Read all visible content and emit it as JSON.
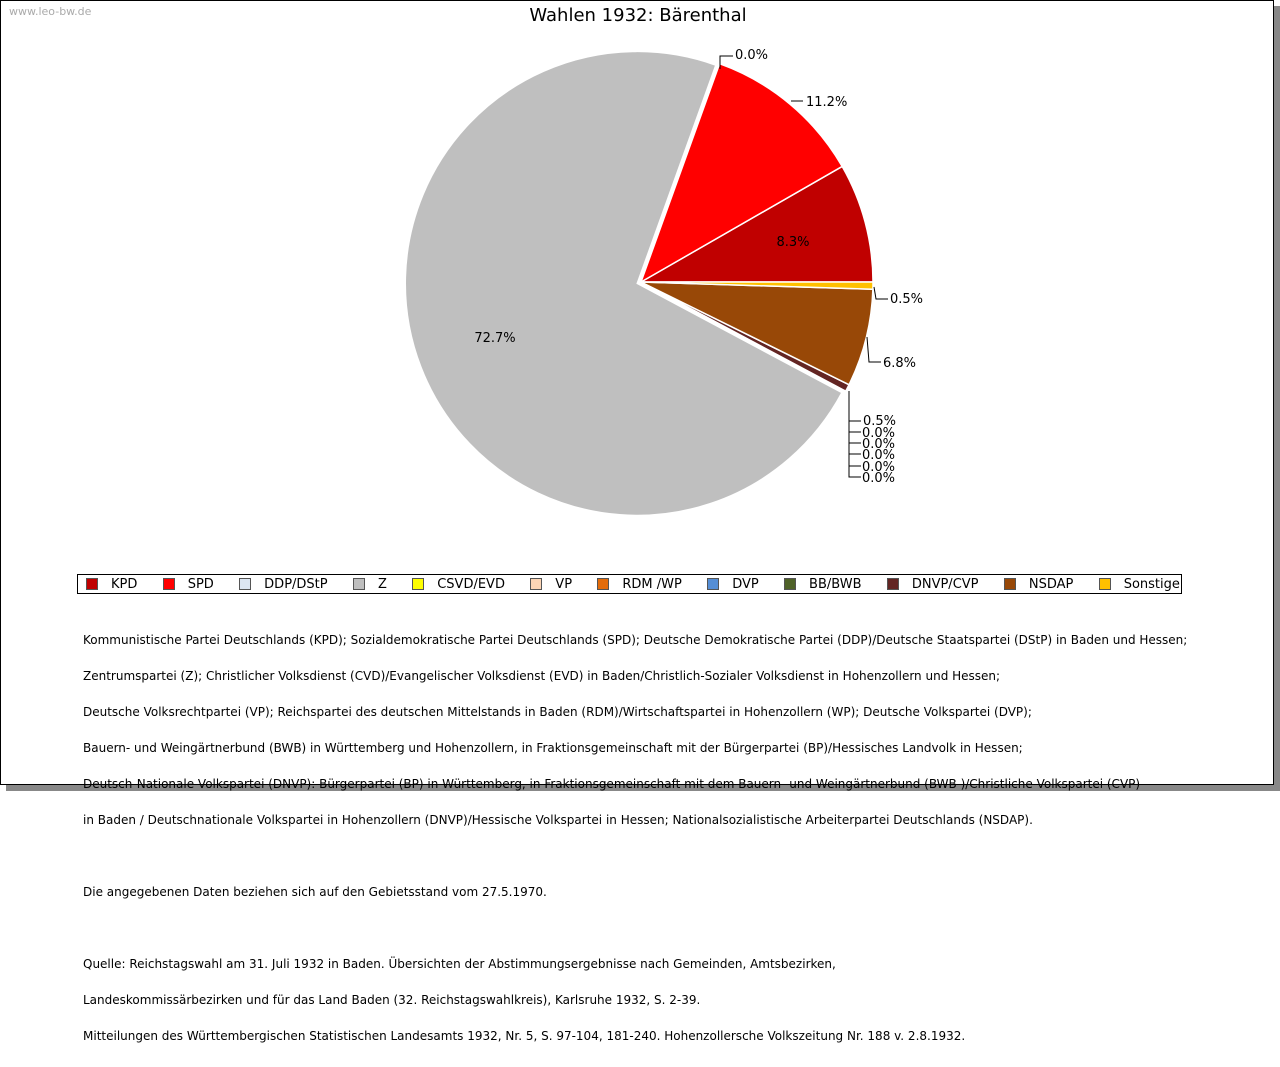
{
  "watermark": "www.leo-bw.de",
  "chart_data": {
    "type": "pie",
    "title": "Wahlen 1932: Bärenthal",
    "categories": [
      "KPD",
      "SPD",
      "DDP/DStP",
      "Z",
      "CSVD/EVD",
      "VP",
      "RDM /WP",
      "DVP",
      "BB/BWB",
      "DNVP/CVP",
      "NSDAP",
      "Sonstige"
    ],
    "values": [
      8.3,
      11.2,
      0.0,
      72.7,
      0.0,
      0.0,
      0.0,
      0.0,
      0.0,
      0.5,
      6.8,
      0.5
    ],
    "labels": [
      "8.3%",
      "11.2%",
      "0.0%",
      "72.7%",
      "0.0%",
      "0.0%",
      "0.0%",
      "0.0%",
      "0.0%",
      "0.5%",
      "6.8%",
      "0.5%"
    ],
    "colors": [
      "#c00000",
      "#ff0000",
      "#dce6f2",
      "#bfbfbf",
      "#ffff00",
      "#fcd5b5",
      "#e46c0a",
      "#558ed5",
      "#4f6228",
      "#632523",
      "#984807",
      "#ffc000"
    ],
    "exploded": "Z",
    "legend_position": "bottom"
  },
  "notes": {
    "lines": [
      "Kommunistische Partei Deutschlands (KPD); Sozialdemokratische Partei Deutschlands (SPD); Deutsche Demokratische Partei (DDP)/Deutsche Staatspartei (DStP) in Baden und Hessen;",
      "Zentrumspartei (Z); Christlicher Volksdienst (CVD)/Evangelischer Volksdienst (EVD) in Baden/Christlich-Sozialer Volksdienst in Hohenzollern und Hessen;",
      "Deutsche Volksrechtpartei (VP); Reichspartei des deutschen Mittelstands in Baden (RDM)/Wirtschaftspartei in Hohenzollern (WP); Deutsche Volkspartei (DVP);",
      "Bauern- und Weingärtnerbund (BWB) in Württemberg und Hohenzollern, in Fraktionsgemeinschaft mit der Bürgerpartei (BP)/Hessisches Landvolk in Hessen;",
      "Deutsch-Nationale Volkspartei (DNVP): Bürgerpartei (BP) in Württemberg, in Fraktionsgemeinschaft mit dem Bauern- und Weingärtnerbund (BWB )/Christliche Volkspartei (CVP)",
      "in Baden / Deutschnationale Volkspartei in Hohenzollern (DNVP)/Hessische Volkspartei in Hessen; Nationalsozialistische Arbeiterpartei Deutschlands (NSDAP)."
    ],
    "gebiet": "Die angegebenen Daten beziehen sich auf den Gebietsstand vom 27.5.1970.",
    "quelle": [
      "Quelle: Reichstagswahl am 31. Juli 1932 in Baden. Übersichten der Abstimmungsergebnisse nach Gemeinden, Amtsbezirken,",
      "Landeskommissärbezirken und für das Land Baden (32. Reichstagswahlkreis), Karlsruhe 1932, S. 2-39.",
      "Mitteilungen des Württembergischen Statistischen Landesamts 1932, Nr. 5, S. 97-104, 181-240. Hohenzollersche Volkszeitung Nr. 188 v. 2.8.1932."
    ]
  }
}
